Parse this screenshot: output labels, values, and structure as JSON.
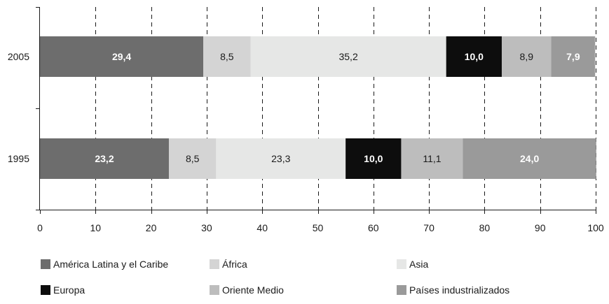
{
  "chart_data": {
    "type": "bar",
    "orientation": "horizontal",
    "stacked": true,
    "categories": [
      "2005",
      "1995"
    ],
    "series": [
      {
        "name": "América Latina y el Caribe",
        "values": [
          29.4,
          23.2
        ],
        "labels": [
          "29,4",
          "23,2"
        ],
        "color": "#6d6d6d",
        "label_color": "#ffffff",
        "label_bold": true
      },
      {
        "name": "África",
        "values": [
          8.5,
          8.5
        ],
        "labels": [
          "8,5",
          "8,5"
        ],
        "color": "#d4d4d4",
        "label_color": "#1a1a1a",
        "label_bold": false
      },
      {
        "name": "Asia",
        "values": [
          35.2,
          23.3
        ],
        "labels": [
          "35,2",
          "23,3"
        ],
        "color": "#e6e7e6",
        "label_color": "#1a1a1a",
        "label_bold": false
      },
      {
        "name": "Europa",
        "values": [
          10.0,
          10.0
        ],
        "labels": [
          "10,0",
          "10,0"
        ],
        "color": "#0d0d0d",
        "label_color": "#ffffff",
        "label_bold": true
      },
      {
        "name": "Oriente Medio",
        "values": [
          8.9,
          11.1
        ],
        "labels": [
          "8,9",
          "11,1"
        ],
        "color": "#bdbdbd",
        "label_color": "#1a1a1a",
        "label_bold": false
      },
      {
        "name": "Países industrializados",
        "values": [
          7.9,
          24.0
        ],
        "labels": [
          "7,9",
          "24,0"
        ],
        "color": "#9a9a9a",
        "label_color": "#ffffff",
        "label_bold": true
      }
    ],
    "xlim": [
      0,
      100
    ],
    "xticks": [
      0,
      10,
      20,
      30,
      40,
      50,
      60,
      70,
      80,
      90,
      100
    ],
    "grid": "vertical-dashed",
    "legend_position": "bottom",
    "title": "",
    "xlabel": "",
    "ylabel": ""
  }
}
